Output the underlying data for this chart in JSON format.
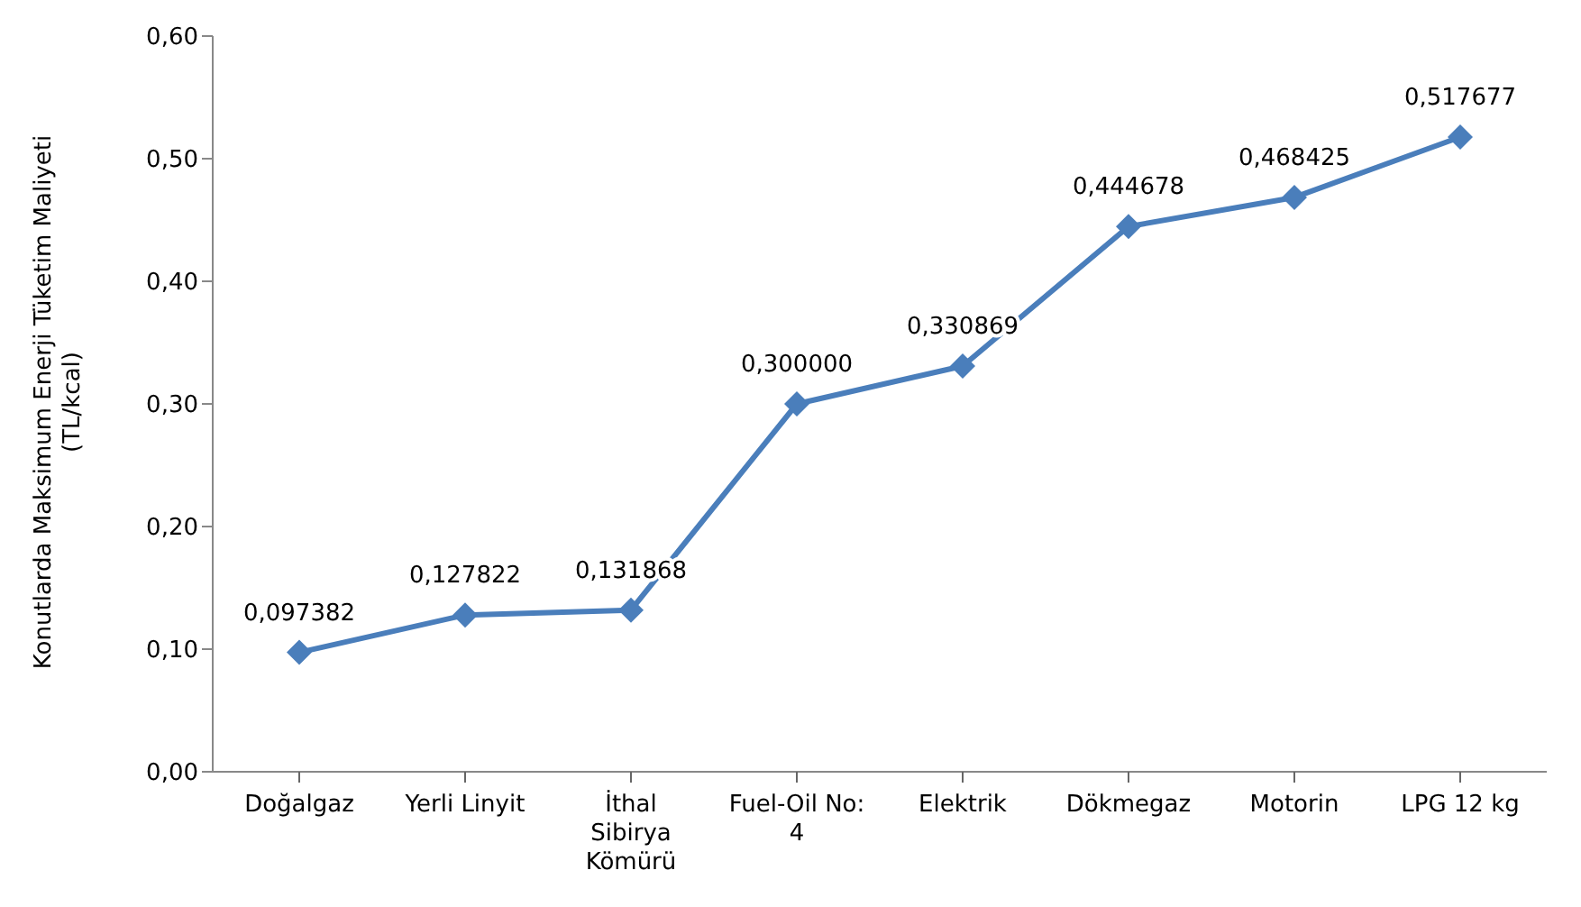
{
  "chart_data": {
    "type": "line",
    "ylabel": "Konutlarda Maksimum Enerji Tüketim Maliyeti (TL/kcal)",
    "categories": [
      "Doğalgaz",
      "Yerli Linyit",
      "İthal Sibirya Kömürü",
      "Fuel-Oil No: 4",
      "Elektrik",
      "Dökmegaz",
      "Motorin",
      "LPG 12 kg"
    ],
    "series": [
      {
        "color": "#4a7ebb",
        "values": [
          0.097382,
          0.127822,
          0.131868,
          0.3,
          0.330869,
          0.444678,
          0.468425,
          0.517677
        ],
        "value_labels": [
          "0,097382",
          "0,127822",
          "0,131868",
          "0,300000",
          "0,330869",
          "0,444678",
          "0,468425",
          "0,517677"
        ]
      }
    ],
    "ylim": [
      0,
      0.6
    ],
    "yticks": [
      {
        "value": 0,
        "label": "0,00"
      },
      {
        "value": 0.1,
        "label": "0,10"
      },
      {
        "value": 0.2,
        "label": "0,20"
      },
      {
        "value": 0.3,
        "label": "0,30"
      },
      {
        "value": 0.4,
        "label": "0,40"
      },
      {
        "value": 0.5,
        "label": "0,50"
      },
      {
        "value": 0.6,
        "label": "0,60"
      }
    ],
    "grid": false,
    "legend": false,
    "marker": "diamond",
    "line_style": "solid"
  }
}
